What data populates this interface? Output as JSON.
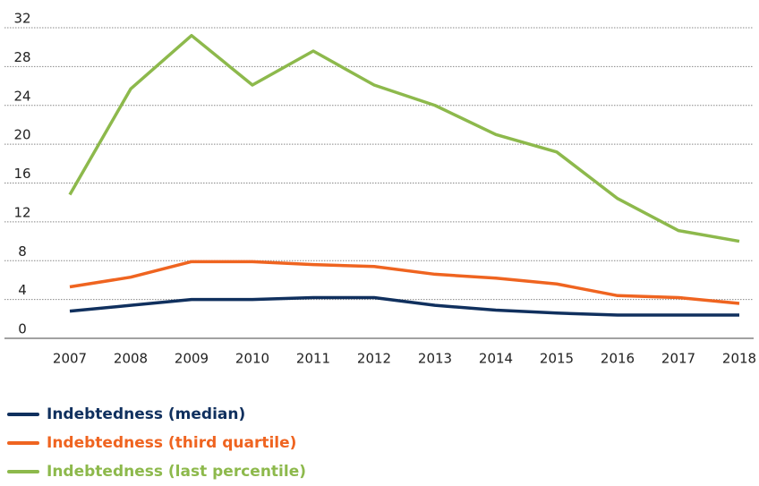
{
  "chart_data": {
    "type": "line",
    "x": [
      2007,
      2008,
      2009,
      2010,
      2011,
      2012,
      2013,
      2014,
      2015,
      2016,
      2017,
      2018
    ],
    "xticks": [
      2007,
      2008,
      2009,
      2010,
      2011,
      2012,
      2013,
      2014,
      2015,
      2016,
      2017,
      2018
    ],
    "xlim": [
      2007,
      2018
    ],
    "ylim": [
      0,
      32
    ],
    "yticks": [
      0,
      4,
      8,
      12,
      16,
      20,
      24,
      28,
      32
    ],
    "grid": true,
    "legend": "bottom-left",
    "series": [
      {
        "name": "Indebtedness (median)",
        "color": "#10305e",
        "values": [
          2.8,
          3.4,
          4.0,
          4.0,
          4.2,
          4.2,
          3.4,
          2.9,
          2.6,
          2.4,
          2.4,
          2.4
        ]
      },
      {
        "name": "Indebtedness (third quartile)",
        "color": "#ef6420",
        "values": [
          5.3,
          6.3,
          7.9,
          7.9,
          7.6,
          7.4,
          6.6,
          6.2,
          5.6,
          4.4,
          4.2,
          3.6
        ]
      },
      {
        "name": "Indebtedness (last percentile)",
        "color": "#8db94c",
        "values": [
          14.8,
          25.7,
          31.2,
          26.1,
          29.6,
          26.1,
          24.0,
          21.0,
          19.2,
          14.4,
          11.1,
          10.0
        ]
      }
    ]
  }
}
